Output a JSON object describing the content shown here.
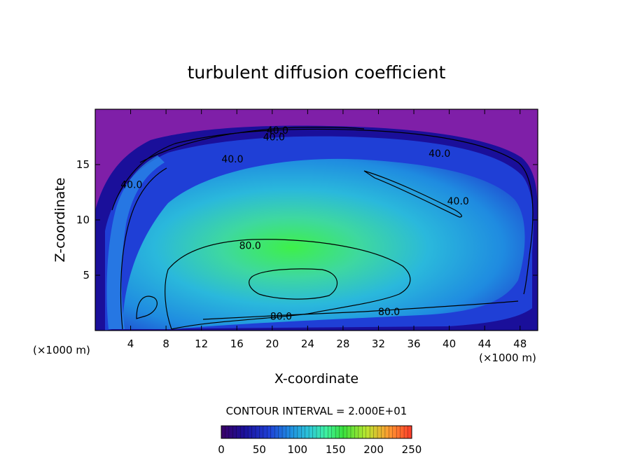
{
  "chart_data": {
    "type": "heatmap",
    "title": "turbulent diffusion coefficient",
    "xlabel": "X-coordinate",
    "ylabel": "Z-coordinate",
    "x_unit_left": "(×1000 m)",
    "x_unit_right": "(×1000 m)",
    "xlim": [
      0,
      50
    ],
    "ylim": [
      0,
      20
    ],
    "x_ticks": [
      4,
      8,
      12,
      16,
      20,
      24,
      28,
      32,
      36,
      40,
      44,
      48
    ],
    "y_ticks": [
      5,
      10,
      15
    ],
    "contour_interval_label": "CONTOUR INTERVAL = 2.000E+01",
    "colorbar": {
      "min": 0,
      "max": 250,
      "ticks": [
        0,
        50,
        100,
        150,
        200,
        250
      ],
      "colormap": [
        "#3a0066",
        "#1a0f9a",
        "#1f3fd6",
        "#1f8be0",
        "#2cc6d8",
        "#3ef0a0",
        "#39e03c",
        "#b8e630",
        "#ff9a30",
        "#ff3a2a"
      ]
    },
    "background_color": "#7f1fa8",
    "contour_labels": [
      {
        "text": "40.0",
        "x": 20.6,
        "z": 18.1
      },
      {
        "text": "40.0",
        "x": 20.2,
        "z": 17.5
      },
      {
        "text": "40.0",
        "x": 15.5,
        "z": 15.5
      },
      {
        "text": "40.0",
        "x": 38.9,
        "z": 16.0
      },
      {
        "text": "40.0",
        "x": 41.0,
        "z": 11.7
      },
      {
        "text": "40.0",
        "x": 4.1,
        "z": 13.2
      },
      {
        "text": "80.0",
        "x": 17.5,
        "z": 7.7
      },
      {
        "text": "80.0",
        "x": 21.0,
        "z": 1.3
      },
      {
        "text": "80.0",
        "x": 33.2,
        "z": 1.7
      }
    ]
  }
}
